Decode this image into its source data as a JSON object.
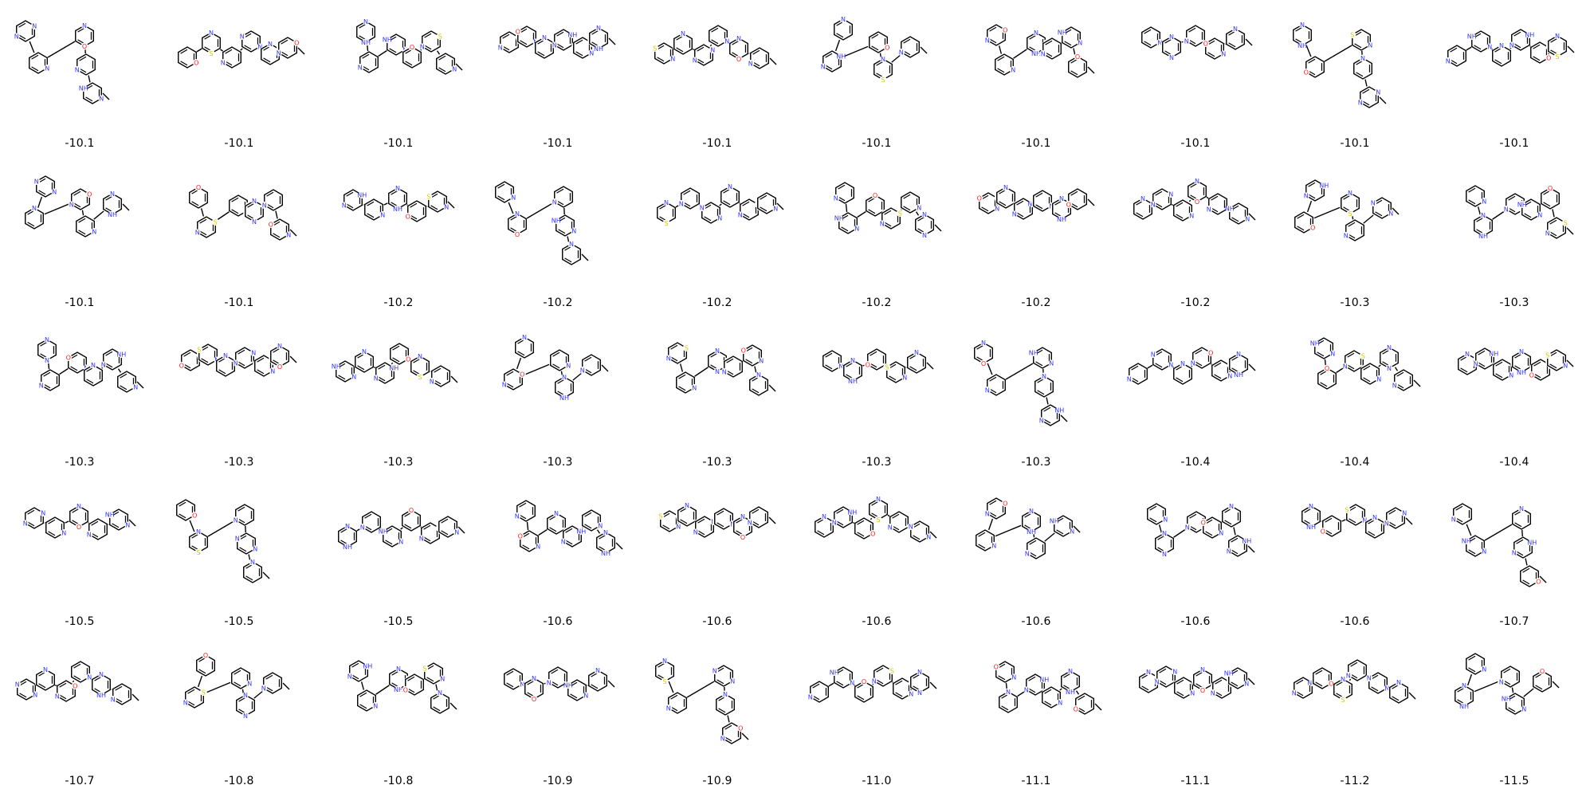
{
  "colors": {
    "carbon_bond": "#000000",
    "nitrogen": "#3333ff",
    "oxygen": "#ff1a1a",
    "sulfur": "#cccc00",
    "background": "#ffffff"
  },
  "atom_labels": {
    "nitrogen": "N",
    "nitrogen_h": "NH",
    "oxygen": "O",
    "sulfur": "S"
  },
  "molecules": [
    {
      "score": "-10.1"
    },
    {
      "score": "-10.1"
    },
    {
      "score": "-10.1"
    },
    {
      "score": "-10.1"
    },
    {
      "score": "-10.1"
    },
    {
      "score": "-10.1"
    },
    {
      "score": "-10.1"
    },
    {
      "score": "-10.1"
    },
    {
      "score": "-10.1"
    },
    {
      "score": "-10.1"
    },
    {
      "score": "-10.1"
    },
    {
      "score": "-10.1"
    },
    {
      "score": "-10.2"
    },
    {
      "score": "-10.2"
    },
    {
      "score": "-10.2"
    },
    {
      "score": "-10.2"
    },
    {
      "score": "-10.2"
    },
    {
      "score": "-10.2"
    },
    {
      "score": "-10.3"
    },
    {
      "score": "-10.3"
    },
    {
      "score": "-10.3"
    },
    {
      "score": "-10.3"
    },
    {
      "score": "-10.3"
    },
    {
      "score": "-10.3"
    },
    {
      "score": "-10.3"
    },
    {
      "score": "-10.3"
    },
    {
      "score": "-10.3"
    },
    {
      "score": "-10.4"
    },
    {
      "score": "-10.4"
    },
    {
      "score": "-10.4"
    },
    {
      "score": "-10.5"
    },
    {
      "score": "-10.5"
    },
    {
      "score": "-10.5"
    },
    {
      "score": "-10.6"
    },
    {
      "score": "-10.6"
    },
    {
      "score": "-10.6"
    },
    {
      "score": "-10.6"
    },
    {
      "score": "-10.6"
    },
    {
      "score": "-10.6"
    },
    {
      "score": "-10.7"
    },
    {
      "score": "-10.7"
    },
    {
      "score": "-10.8"
    },
    {
      "score": "-10.8"
    },
    {
      "score": "-10.9"
    },
    {
      "score": "-10.9"
    },
    {
      "score": "-11.0"
    },
    {
      "score": "-11.1"
    },
    {
      "score": "-11.1"
    },
    {
      "score": "-11.2"
    },
    {
      "score": "-11.5"
    }
  ]
}
